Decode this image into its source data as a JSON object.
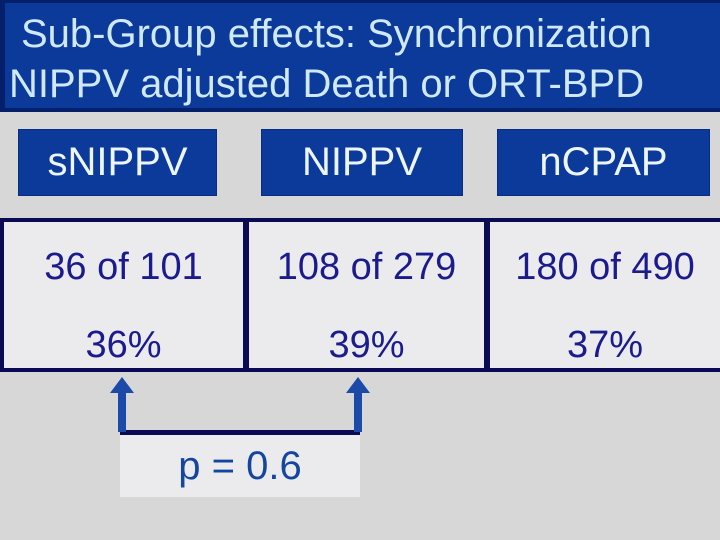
{
  "title": {
    "line1": "Sub-Group effects: Synchronization",
    "line2": "NIPPV adjusted Death or ORT-BPD"
  },
  "table": {
    "columns": [
      {
        "header": "sNIPPV",
        "count": "36 of 101",
        "percent": "36%"
      },
      {
        "header": "NIPPV",
        "count": "108 of 279",
        "percent": "39%"
      },
      {
        "header": "nCPAP",
        "count": "180 of 490",
        "percent": "37%"
      }
    ]
  },
  "annotation": {
    "p_value": "p = 0.6"
  },
  "colors": {
    "slide_background": "#d7d7d7",
    "title_band_blue": "#0b3a9b",
    "title_text_pale_blue": "#cfe9fb",
    "header_box_blue": "#0b3a9b",
    "table_border_navy": "#0a0a55",
    "cell_fill_gray": "#ebebee",
    "cell_text_navy": "#1b1b8e",
    "arrow_blue": "#1c4aa8",
    "p_text_blue": "#15469f"
  }
}
